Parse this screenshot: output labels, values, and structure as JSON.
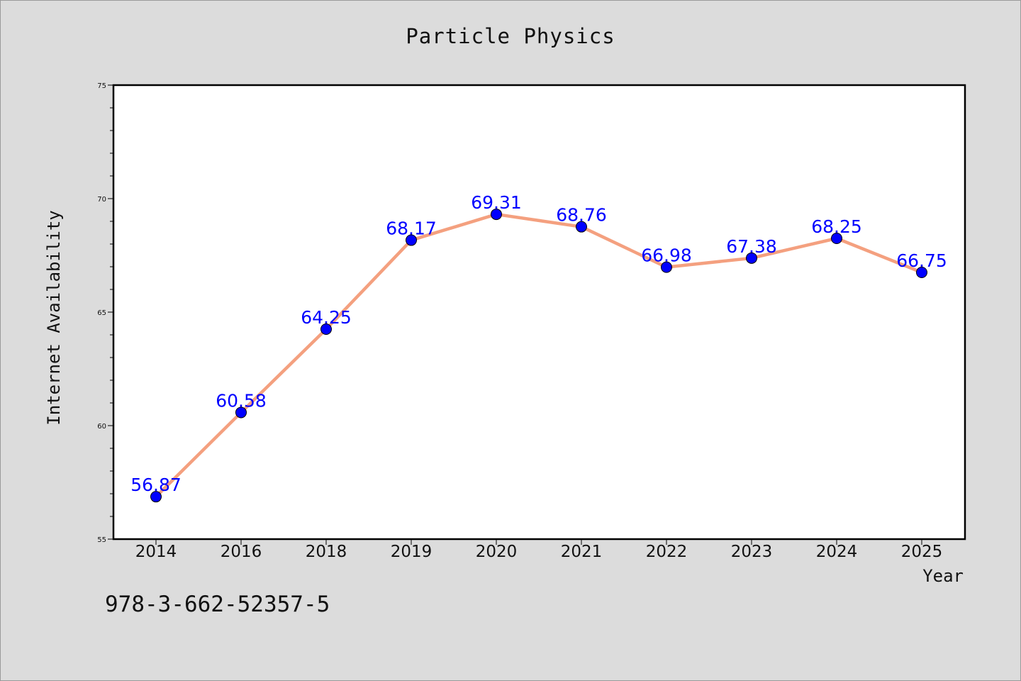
{
  "page": {
    "title": "Particle Physics",
    "footer_text": "978-3-662-52357-5"
  },
  "chart_data": {
    "type": "line",
    "title": "Particle Physics",
    "xlabel": "Year",
    "ylabel": "Internet Availability",
    "categories": [
      "2014",
      "2016",
      "2018",
      "2019",
      "2020",
      "2021",
      "2022",
      "2023",
      "2024",
      "2025"
    ],
    "series": [
      {
        "values": [
          56.87,
          60.58,
          64.25,
          68.17,
          69.31,
          68.76,
          66.98,
          67.38,
          68.25,
          66.75
        ],
        "data_labels": [
          "56.87",
          "60.58",
          "64.25",
          "68.17",
          "69.31",
          "68.76",
          "66.98",
          "67.38",
          "68.25",
          "66.75"
        ],
        "line_color": "#f4a07f",
        "marker_color": "#0000ff"
      }
    ],
    "ylim": [
      55,
      75
    ],
    "yticks": [
      55,
      60,
      65,
      70,
      75
    ],
    "grid": false,
    "legend": "none",
    "colors": {
      "background": "#dcdcdc",
      "plot_background": "#ffffff",
      "line": "#f4a07f",
      "marker": "#0000ff",
      "label": "#0000ff"
    }
  }
}
